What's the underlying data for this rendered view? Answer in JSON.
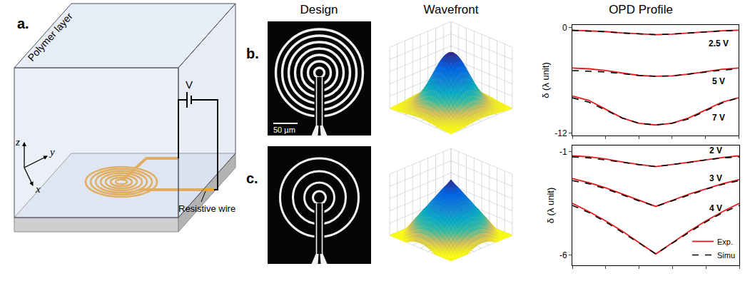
{
  "figure": {
    "panel_a": {
      "label": "a.",
      "layer": "Polymer layer",
      "wire": "Resistive wire",
      "source": "V",
      "axes": [
        "x",
        "y",
        "z"
      ]
    },
    "columns": [
      "Design",
      "Wavefront",
      "OPD Profile"
    ],
    "rows": [
      {
        "label": "b.",
        "scale_bar": "50 µm"
      },
      {
        "label": "c."
      }
    ]
  },
  "chart_data": [
    {
      "type": "line",
      "ylabel": "δ (λ unit)",
      "x": [
        0,
        1,
        2,
        3,
        4,
        5,
        6,
        7,
        8,
        9,
        10
      ],
      "xlim": [
        0,
        10
      ],
      "xticks": [
        0,
        2,
        4,
        6,
        8,
        10
      ],
      "ylim": [
        -12.3,
        0.3
      ],
      "yticks": [
        -12,
        0
      ],
      "tick_labels": "y",
      "series": [
        {
          "name": "Exp.",
          "color": "#e41a1c",
          "line_style": "solid",
          "values": [
            -0.3,
            -0.35,
            -0.45,
            -0.6,
            -0.72,
            -0.8,
            -0.75,
            -0.62,
            -0.48,
            -0.36,
            -0.3
          ]
        },
        {
          "name": "Simu",
          "color": "#000000",
          "line_style": "dashed",
          "values": [
            -0.32,
            -0.38,
            -0.48,
            -0.62,
            -0.74,
            -0.8,
            -0.74,
            -0.62,
            -0.48,
            -0.38,
            -0.32
          ]
        },
        {
          "name": "Exp.",
          "color": "#e41a1c",
          "line_style": "solid",
          "values": [
            -4.6,
            -4.7,
            -4.9,
            -5.2,
            -5.45,
            -5.55,
            -5.5,
            -5.3,
            -5.0,
            -4.75,
            -4.6
          ]
        },
        {
          "name": "Simu",
          "color": "#000000",
          "line_style": "dashed",
          "values": [
            -4.9,
            -4.95,
            -5.05,
            -5.25,
            -5.45,
            -5.55,
            -5.5,
            -5.3,
            -5.05,
            -4.85,
            -4.7
          ]
        },
        {
          "name": "Exp.",
          "color": "#e41a1c",
          "line_style": "solid",
          "values": [
            -7.8,
            -8.3,
            -9.3,
            -10.3,
            -10.9,
            -11.1,
            -10.9,
            -10.3,
            -9.4,
            -8.5,
            -8.0
          ]
        },
        {
          "name": "Simu",
          "color": "#000000",
          "line_style": "dashed",
          "values": [
            -8.0,
            -8.5,
            -9.4,
            -10.3,
            -10.9,
            -11.1,
            -10.9,
            -10.4,
            -9.5,
            -8.6,
            -8.0
          ]
        }
      ],
      "annotations": [
        {
          "text": "2.5 V",
          "x": 8.8,
          "y": -1.8
        },
        {
          "text": "5 V",
          "x": 8.8,
          "y": -6.1
        },
        {
          "text": "7 V",
          "x": 8.8,
          "y": -10.3
        }
      ]
    },
    {
      "type": "line",
      "ylabel": "δ (λ unit)",
      "x": [
        0,
        1,
        2,
        3,
        4,
        5,
        6,
        7,
        8,
        9,
        10
      ],
      "xlim": [
        0,
        10
      ],
      "xticks": [
        0,
        2,
        4,
        6,
        8,
        10
      ],
      "ylim": [
        -6.5,
        -0.7
      ],
      "yticks": [
        -6,
        -1
      ],
      "tick_labels": "y",
      "legend": "lower right",
      "series": [
        {
          "name": "Exp.",
          "color": "#e41a1c",
          "line_style": "solid",
          "values": [
            -1.2,
            -1.25,
            -1.35,
            -1.5,
            -1.62,
            -1.72,
            -1.62,
            -1.5,
            -1.38,
            -1.28,
            -1.2
          ]
        },
        {
          "name": "Simu",
          "color": "#000000",
          "line_style": "dashed",
          "values": [
            -1.25,
            -1.3,
            -1.4,
            -1.52,
            -1.63,
            -1.72,
            -1.63,
            -1.52,
            -1.4,
            -1.3,
            -1.25
          ]
        },
        {
          "name": "Exp.",
          "color": "#e41a1c",
          "line_style": "solid",
          "values": [
            -2.3,
            -2.5,
            -2.75,
            -3.05,
            -3.35,
            -3.65,
            -3.35,
            -3.05,
            -2.8,
            -2.55,
            -2.35
          ]
        },
        {
          "name": "Simu",
          "color": "#000000",
          "line_style": "dashed",
          "values": [
            -2.4,
            -2.55,
            -2.8,
            -3.1,
            -3.38,
            -3.65,
            -3.38,
            -3.1,
            -2.82,
            -2.58,
            -2.4
          ]
        },
        {
          "name": "Exp.",
          "color": "#e41a1c",
          "line_style": "solid",
          "values": [
            -3.5,
            -3.9,
            -4.35,
            -4.85,
            -5.4,
            -5.95,
            -5.4,
            -4.85,
            -4.35,
            -3.9,
            -3.5
          ]
        },
        {
          "name": "Simu",
          "color": "#000000",
          "line_style": "dashed",
          "values": [
            -3.6,
            -3.95,
            -4.4,
            -4.9,
            -5.42,
            -5.95,
            -5.42,
            -4.9,
            -4.4,
            -3.95,
            -3.6
          ]
        }
      ],
      "annotations": [
        {
          "text": "2 V",
          "x": 8.6,
          "y": -0.95
        },
        {
          "text": "3 V",
          "x": 8.6,
          "y": -2.3
        },
        {
          "text": "4 V",
          "x": 8.6,
          "y": -3.75
        }
      ]
    }
  ]
}
